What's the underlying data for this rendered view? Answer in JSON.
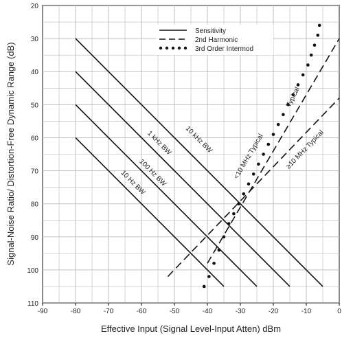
{
  "chart_data": {
    "type": "line",
    "xlabel": "Effective Input (Signal Level-Input Atten) dBm",
    "ylabel": "Signal-Noise Ratio/ Distortion-Free Dynamic Range (dB)",
    "xlim": [
      -90,
      0
    ],
    "ylim": [
      20,
      110
    ],
    "y_inverted": true,
    "grid": true,
    "x_ticks": [
      "-90",
      "-80",
      "-70",
      "-60",
      "-50",
      "-40",
      "-30",
      "-20",
      "-10",
      "0"
    ],
    "x_tick_values": [
      -90,
      -80,
      -70,
      -60,
      -50,
      -40,
      -30,
      -20,
      -10,
      0
    ],
    "y_ticks": [
      "20",
      "30",
      "40",
      "50",
      "60",
      "70",
      "80",
      "90",
      "100",
      "110"
    ],
    "y_tick_values": [
      20,
      30,
      40,
      50,
      60,
      70,
      80,
      90,
      100,
      110
    ],
    "legend": {
      "placement": "top-right",
      "items": [
        {
          "label": "Sensitivity",
          "style": "solid"
        },
        {
          "label": "2nd Harmonic",
          "style": "dashed"
        },
        {
          "label": "3rd Order Intermod",
          "style": "dotted"
        }
      ]
    },
    "series": [
      {
        "name": "10 kHz BW",
        "style": "solid",
        "x": [
          -80,
          -5
        ],
        "y": [
          30,
          105
        ]
      },
      {
        "name": "1 kHz BW",
        "style": "solid",
        "x": [
          -80,
          -15
        ],
        "y": [
          40,
          105
        ]
      },
      {
        "name": "100 Hz BW",
        "style": "solid",
        "x": [
          -80,
          -25
        ],
        "y": [
          50,
          105
        ]
      },
      {
        "name": "10 Hz BW",
        "style": "solid",
        "x": [
          -80,
          -35
        ],
        "y": [
          60,
          105
        ]
      },
      {
        "name": "<10 MHz Typical",
        "style": "dashed",
        "x": [
          -40,
          0
        ],
        "y": [
          98,
          30
        ]
      },
      {
        "name": "≥10 MHz Typical",
        "style": "dashed",
        "x": [
          -52,
          0
        ],
        "y": [
          102,
          48
        ]
      },
      {
        "name": "3rd Order Intermod Typical",
        "style": "dotted",
        "x": [
          -41,
          -39.5,
          -38,
          -36.5,
          -35,
          -33.5,
          -32,
          -30.5,
          -29,
          -27.5,
          -26,
          -24.5,
          -23,
          -21.5,
          -20,
          -18.5,
          -17,
          -15.5,
          -14,
          -12.5,
          -11,
          -9.5,
          -8.5,
          -7.5,
          -6.5,
          -6
        ],
        "y": [
          105,
          102,
          98,
          94,
          90,
          86,
          83,
          80,
          77,
          74,
          71,
          68,
          65,
          62,
          59,
          56,
          53,
          50,
          47,
          44,
          41,
          38,
          35,
          32,
          29,
          26
        ]
      }
    ],
    "annotations": {
      "bw_10khz": "10 kHz BW",
      "bw_1khz": "1 kHz BW",
      "bw_100hz": "100 Hz BW",
      "bw_10hz": "10 Hz BW",
      "typ_lt10": "<10 MHz Typical",
      "typ_ge10": "≥10 MHz Typical",
      "typ_intermod": "Typical"
    }
  }
}
